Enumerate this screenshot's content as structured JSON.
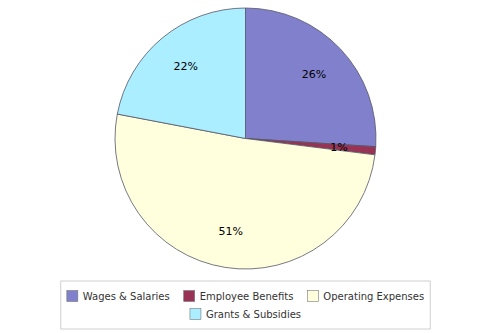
{
  "chart_data": {
    "type": "pie",
    "categories": [
      "Wages & Salaries",
      "Employee Benefits",
      "Operating Expenses",
      "Grants & Subsidies"
    ],
    "values": [
      26,
      1,
      51,
      22
    ],
    "value_labels": [
      "26%",
      "1%",
      "51%",
      "22%"
    ],
    "colors": [
      "#8080cc",
      "#993355",
      "#ffffdd",
      "#aaeeff"
    ],
    "data_labels": true,
    "legend": "bottom"
  }
}
